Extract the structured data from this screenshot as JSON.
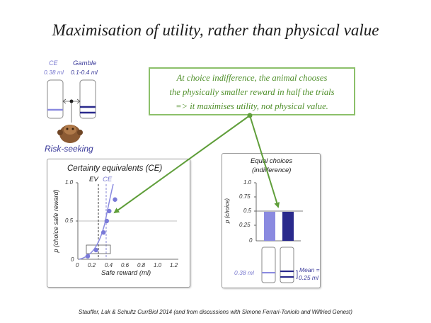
{
  "title": "Maximisation of utility, rather than physical value",
  "schematic": {
    "ce_label": "CE",
    "ce_value": "0.38 ml",
    "gamble_label": "Gamble",
    "gamble_value": "0.1-0.4 ml",
    "risk_label": "Risk-seeking"
  },
  "callout": {
    "line1": "At choice indifference, the animal chooses",
    "line2": "the physically smaller reward in half the trials",
    "line3": "=> it maximises utility, not physical value."
  },
  "left_panel": {
    "title": "Certainty equivalents (CE)",
    "ev_label": "EV",
    "ce_label": "CE",
    "xlabel": "Safe reward (ml)",
    "ylabel": "p (choice safe reward)",
    "x_ticks": [
      "0",
      "0.2",
      "0.4",
      "0.6",
      "0.8",
      "1.0",
      "1.2"
    ],
    "y_ticks": [
      "0",
      "0.5",
      "1.0"
    ]
  },
  "right_panel": {
    "title_line1": "Equal choices",
    "title_line2": "(indifference)",
    "ylabel": "p (choice)",
    "y_ticks": [
      "0",
      "0.25",
      "0.5",
      "0.75",
      "1.0"
    ],
    "safe_value": "0.38 ml",
    "mean_line1": "Mean =",
    "mean_line2": "0.25 ml"
  },
  "citation": "Stauffer, Lak & Schultz CurrBiol 2014 (and from discussions with Simone Ferrari-Toniolo and Wilfried Genest)",
  "colors": {
    "accent_green": "#5f9e3a",
    "dark_blue": "#2a2a8c",
    "light_blue": "#8a8ae0"
  },
  "chart_data": [
    {
      "type": "scatter",
      "title": "Certainty equivalents (CE)",
      "xlabel": "Safe reward (ml)",
      "ylabel": "p (choice safe reward)",
      "xlim": [
        0,
        1.2
      ],
      "ylim": [
        0,
        1.0
      ],
      "x": [
        0.12,
        0.22,
        0.31,
        0.35,
        0.38,
        0.45
      ],
      "y": [
        0.04,
        0.12,
        0.35,
        0.5,
        0.63,
        0.78
      ],
      "ev": 0.25,
      "ce": 0.38
    },
    {
      "type": "bar",
      "title": "Equal choices (indifference)",
      "ylabel": "p (choice)",
      "categories": [
        "safe 0.38 ml",
        "gamble mean 0.25 ml"
      ],
      "values": [
        0.5,
        0.5
      ],
      "ylim": [
        0,
        1.0
      ]
    }
  ]
}
